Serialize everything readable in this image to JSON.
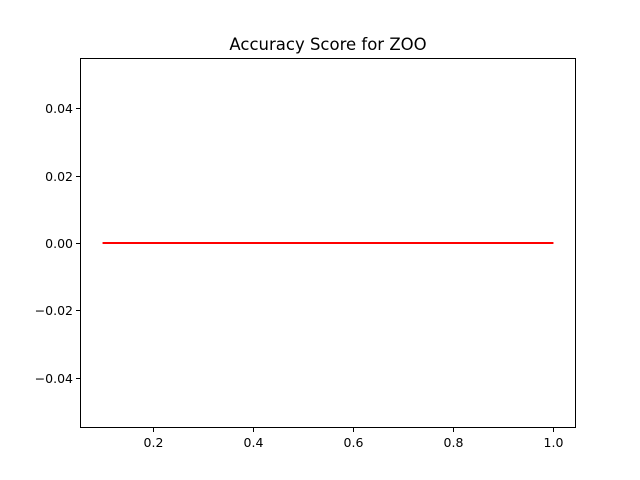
{
  "chart_data": {
    "type": "line",
    "title": "Accuracy Score for ZOO",
    "xlabel": "",
    "ylabel": "",
    "xlim": [
      0.055,
      1.045
    ],
    "ylim": [
      -0.055,
      0.055
    ],
    "x_ticks": [
      0.2,
      0.4,
      0.6,
      0.8,
      1.0
    ],
    "x_tick_labels": [
      "0.2",
      "0.4",
      "0.6",
      "0.8",
      "1.0"
    ],
    "y_ticks": [
      0.04,
      0.02,
      0.0,
      -0.02,
      -0.04
    ],
    "y_tick_labels": [
      "0.04",
      "0.02",
      "0.00",
      "−0.02",
      "−0.04"
    ],
    "grid": false,
    "series": [
      {
        "color": "#ff0000",
        "x": [
          0.1,
          0.2,
          0.3,
          0.4,
          0.5,
          0.6,
          0.7,
          0.8,
          0.9,
          1.0
        ],
        "y": [
          0,
          0,
          0,
          0,
          0,
          0,
          0,
          0,
          0,
          0
        ]
      }
    ]
  }
}
